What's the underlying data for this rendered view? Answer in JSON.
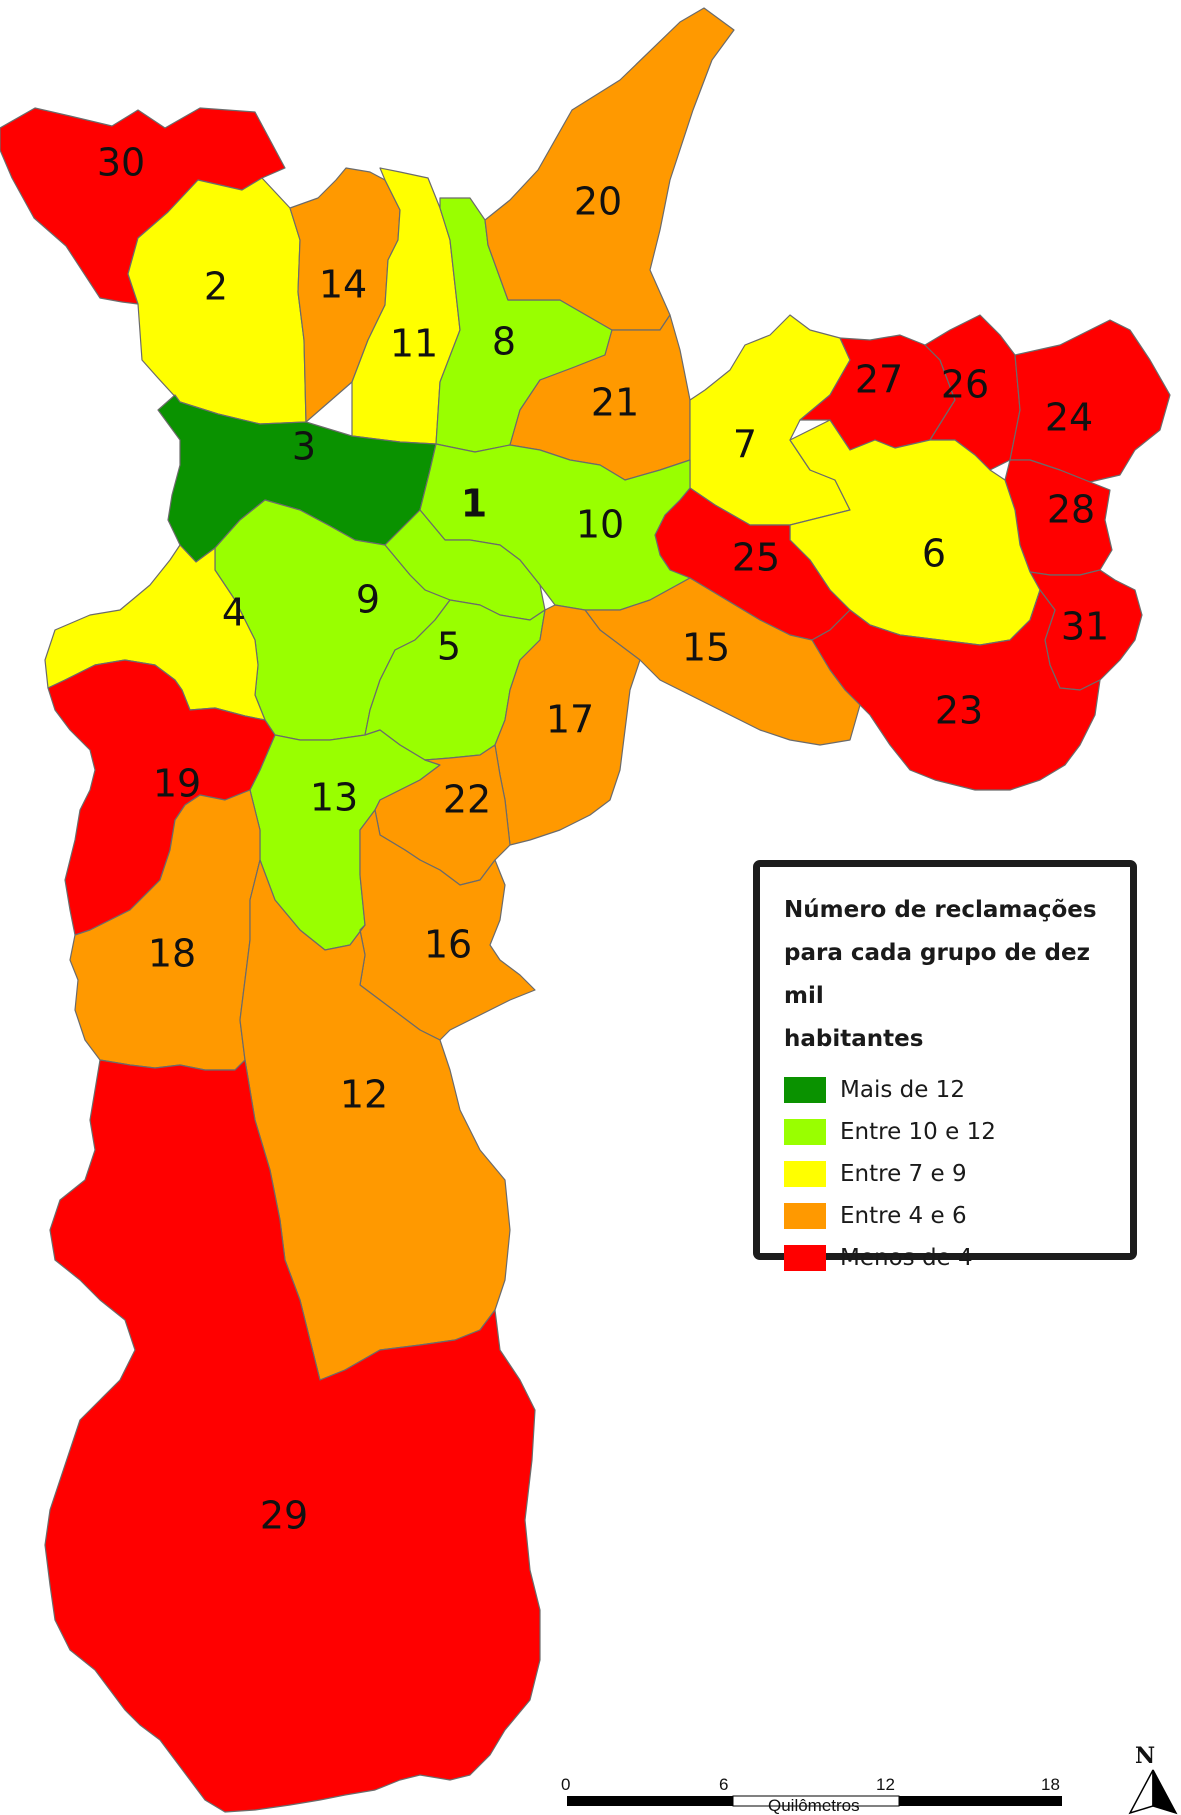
{
  "colors": {
    "dark_green": "#0a9200",
    "light_green": "#99ff00",
    "yellow": "#ffff00",
    "orange": "#ff9900",
    "red": "#ff0000"
  },
  "regions": [
    {
      "id": "1",
      "label": "1",
      "color": "light_green"
    },
    {
      "id": "2",
      "label": "2",
      "color": "yellow"
    },
    {
      "id": "3",
      "label": "3",
      "color": "dark_green"
    },
    {
      "id": "4",
      "label": "4",
      "color": "yellow"
    },
    {
      "id": "5",
      "label": "5",
      "color": "light_green"
    },
    {
      "id": "6",
      "label": "6",
      "color": "yellow"
    },
    {
      "id": "7",
      "label": "7",
      "color": "yellow"
    },
    {
      "id": "8",
      "label": "8",
      "color": "light_green"
    },
    {
      "id": "9",
      "label": "9",
      "color": "light_green"
    },
    {
      "id": "10",
      "label": "10",
      "color": "light_green"
    },
    {
      "id": "11",
      "label": "11",
      "color": "yellow"
    },
    {
      "id": "12",
      "label": "12",
      "color": "orange"
    },
    {
      "id": "13",
      "label": "13",
      "color": "light_green"
    },
    {
      "id": "14",
      "label": "14",
      "color": "orange"
    },
    {
      "id": "15",
      "label": "15",
      "color": "orange"
    },
    {
      "id": "16",
      "label": "16",
      "color": "orange"
    },
    {
      "id": "17",
      "label": "17",
      "color": "orange"
    },
    {
      "id": "18",
      "label": "18",
      "color": "orange"
    },
    {
      "id": "19",
      "label": "19",
      "color": "red"
    },
    {
      "id": "20",
      "label": "20",
      "color": "orange"
    },
    {
      "id": "21",
      "label": "21",
      "color": "orange"
    },
    {
      "id": "22",
      "label": "22",
      "color": "orange"
    },
    {
      "id": "23",
      "label": "23",
      "color": "red"
    },
    {
      "id": "24",
      "label": "24",
      "color": "red"
    },
    {
      "id": "25",
      "label": "25",
      "color": "red"
    },
    {
      "id": "26",
      "label": "26",
      "color": "red"
    },
    {
      "id": "27",
      "label": "27",
      "color": "red"
    },
    {
      "id": "28",
      "label": "28",
      "color": "red"
    },
    {
      "id": "29",
      "label": "29",
      "color": "red"
    },
    {
      "id": "30",
      "label": "30",
      "color": "red"
    },
    {
      "id": "31",
      "label": "31",
      "color": "red"
    }
  ],
  "legend": {
    "title_lines": [
      "Número de reclamações",
      "para cada grupo de dez mil",
      "habitantes"
    ],
    "items": [
      {
        "label": "Mais de 12",
        "color": "dark_green"
      },
      {
        "label": "Entre 10 e 12",
        "color": "light_green"
      },
      {
        "label": "Entre 7 e 9",
        "color": "yellow"
      },
      {
        "label": "Entre 4 e 6",
        "color": "orange"
      },
      {
        "label": "Menos de 4",
        "color": "red"
      }
    ]
  },
  "scale_bar": {
    "ticks": [
      "0",
      "6",
      "12",
      "18"
    ],
    "unit": "Quilômetros"
  },
  "north_arrow": {
    "label": "N",
    "icon": "north-arrow-icon"
  }
}
